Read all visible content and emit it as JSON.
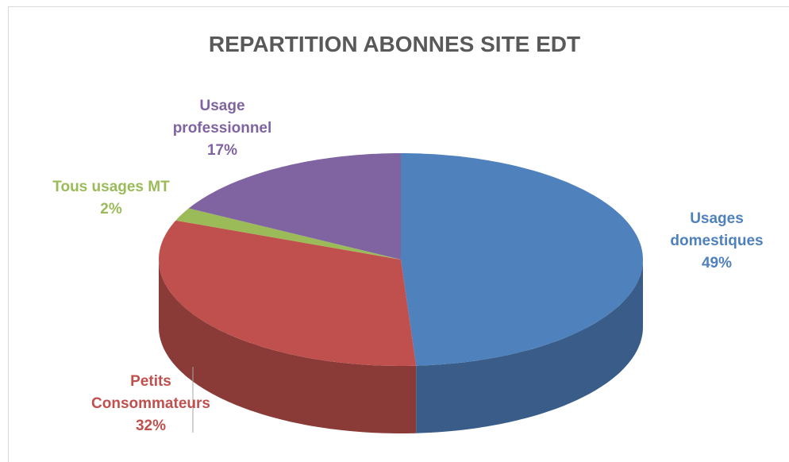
{
  "chart_data": {
    "type": "pie",
    "title": "REPARTITION ABONNES SITE EDT",
    "categories": [
      "Usages domestiques",
      "Petits Consommateurs",
      "Tous usages MT",
      "Usage professionnel"
    ],
    "values": [
      49,
      32,
      2,
      17
    ],
    "value_labels": [
      "49%",
      "32%",
      "2%",
      "17%"
    ],
    "colors": [
      "#4f81bd",
      "#c0504d",
      "#9bbb59",
      "#8064a2"
    ]
  }
}
